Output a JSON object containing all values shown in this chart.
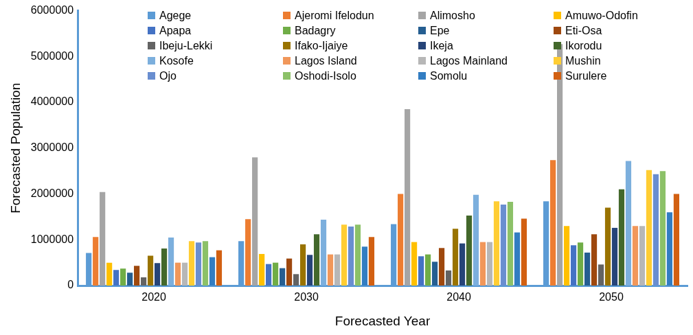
{
  "chart_data": {
    "type": "bar",
    "xlabel": "Forecasted Year",
    "ylabel": "Forecasted Population",
    "categories": [
      "2020",
      "2030",
      "2040",
      "2050"
    ],
    "ylim": [
      0,
      6000000
    ],
    "yticks": [
      0,
      1000000,
      2000000,
      3000000,
      4000000,
      5000000,
      6000000
    ],
    "legend": "top",
    "series": [
      {
        "name": "Agege",
        "color": "#5b9bd5",
        "values": [
          710000,
          970000,
          1340000,
          1840000
        ]
      },
      {
        "name": "Ajeromi Ifelodun",
        "color": "#ed7d31",
        "values": [
          1060000,
          1450000,
          2000000,
          2740000
        ]
      },
      {
        "name": "Alimosho",
        "color": "#a5a5a5",
        "values": [
          2040000,
          2800000,
          3850000,
          5270000
        ]
      },
      {
        "name": "Amuwo-Odofin",
        "color": "#ffc000",
        "values": [
          500000,
          690000,
          950000,
          1300000
        ]
      },
      {
        "name": "Apapa",
        "color": "#4472c4",
        "values": [
          340000,
          470000,
          640000,
          880000
        ]
      },
      {
        "name": "Badagry",
        "color": "#70ad47",
        "values": [
          370000,
          500000,
          680000,
          940000
        ]
      },
      {
        "name": "Epe",
        "color": "#255e91",
        "values": [
          280000,
          380000,
          520000,
          720000
        ]
      },
      {
        "name": "Eti-Osa",
        "color": "#9e480e",
        "values": [
          430000,
          590000,
          820000,
          1120000
        ]
      },
      {
        "name": "Ibeju-Lekki",
        "color": "#636363",
        "values": [
          180000,
          250000,
          330000,
          460000
        ]
      },
      {
        "name": "Ifako-Ijaiye",
        "color": "#997300",
        "values": [
          650000,
          900000,
          1240000,
          1700000
        ]
      },
      {
        "name": "Ikeja",
        "color": "#264478",
        "values": [
          490000,
          670000,
          920000,
          1260000
        ]
      },
      {
        "name": "Ikorodu",
        "color": "#43682b",
        "values": [
          810000,
          1120000,
          1530000,
          2100000
        ]
      },
      {
        "name": "Kosofe",
        "color": "#7cafdd",
        "values": [
          1050000,
          1440000,
          1980000,
          2720000
        ]
      },
      {
        "name": "Lagos Island",
        "color": "#f1975a",
        "values": [
          500000,
          680000,
          950000,
          1300000
        ]
      },
      {
        "name": "Lagos Mainland",
        "color": "#b7b7b7",
        "values": [
          500000,
          680000,
          950000,
          1300000
        ]
      },
      {
        "name": "Mushin",
        "color": "#ffcd33",
        "values": [
          970000,
          1330000,
          1840000,
          2520000
        ]
      },
      {
        "name": "Ojo",
        "color": "#698ed0",
        "values": [
          940000,
          1290000,
          1770000,
          2430000
        ]
      },
      {
        "name": "Oshodi-Isolo",
        "color": "#8cc168",
        "values": [
          970000,
          1330000,
          1830000,
          2500000
        ]
      },
      {
        "name": "Somolu",
        "color": "#327dc2",
        "values": [
          620000,
          850000,
          1160000,
          1600000
        ]
      },
      {
        "name": "Surulere",
        "color": "#d26012",
        "values": [
          770000,
          1060000,
          1460000,
          2000000
        ]
      }
    ]
  }
}
